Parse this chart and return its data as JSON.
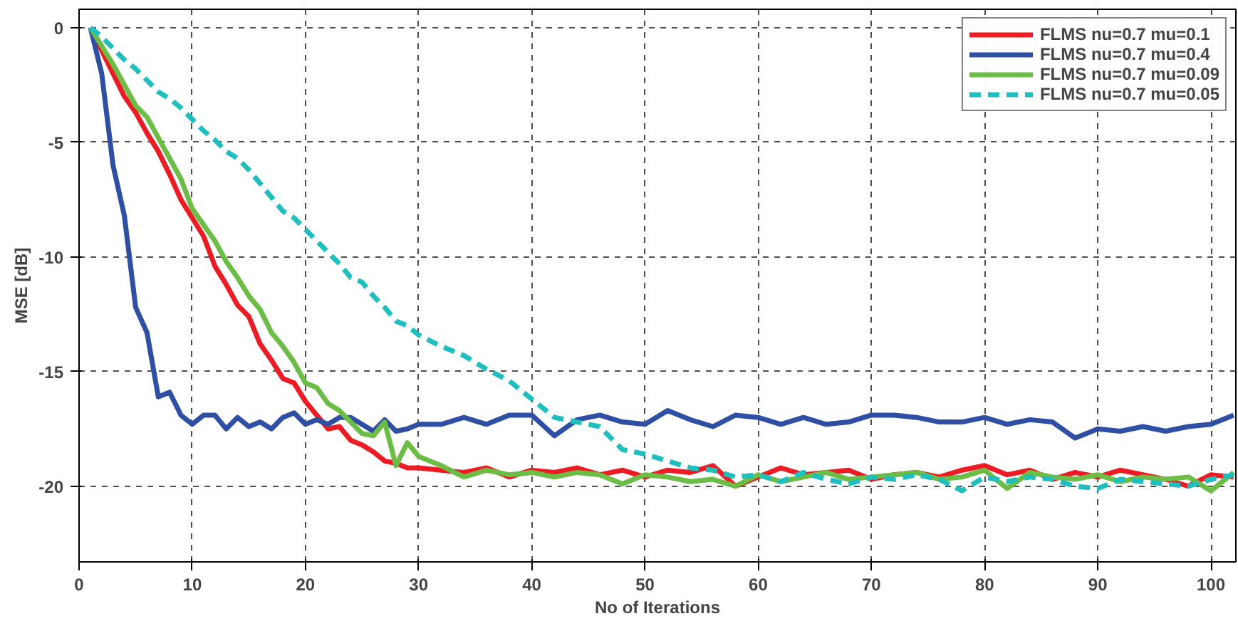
{
  "chart_data": {
    "type": "line",
    "xlabel": "No of Iterations",
    "ylabel": "MSE [dB]",
    "x": [
      1,
      2,
      3,
      4,
      5,
      6,
      7,
      8,
      9,
      10,
      11,
      12,
      13,
      14,
      15,
      16,
      17,
      18,
      19,
      20,
      21,
      22,
      23,
      24,
      25,
      26,
      27,
      28,
      29,
      30,
      32,
      34,
      36,
      38,
      40,
      42,
      44,
      46,
      48,
      50,
      52,
      54,
      56,
      58,
      60,
      62,
      64,
      66,
      68,
      70,
      72,
      74,
      76,
      78,
      80,
      82,
      84,
      86,
      88,
      90,
      92,
      94,
      96,
      98,
      100,
      102
    ],
    "series": [
      {
        "name": "FLMS nu=0.7 mu=0.1",
        "color": "#ed1c24",
        "line_style": "solid",
        "values": [
          0,
          -1,
          -2,
          -3,
          -3.7,
          -4.6,
          -5.4,
          -6.4,
          -7.5,
          -8.3,
          -9.1,
          -10.4,
          -11.2,
          -12.1,
          -12.6,
          -13.8,
          -14.5,
          -15.3,
          -15.5,
          -16.3,
          -16.9,
          -17.5,
          -17.4,
          -18.0,
          -18.2,
          -18.5,
          -18.9,
          -19.0,
          -19.2,
          -19.2,
          -19.3,
          -19.4,
          -19.2,
          -19.6,
          -19.3,
          -19.4,
          -19.2,
          -19.5,
          -19.3,
          -19.6,
          -19.3,
          -19.4,
          -19.1,
          -20.0,
          -19.6,
          -19.2,
          -19.5,
          -19.4,
          -19.3,
          -19.7,
          -19.5,
          -19.4,
          -19.6,
          -19.3,
          -19.1,
          -19.5,
          -19.3,
          -19.7,
          -19.4,
          -19.6,
          -19.3,
          -19.5,
          -19.7,
          -20.0,
          -19.5,
          -19.6
        ]
      },
      {
        "name": "FLMS nu=0.7 mu=0.4",
        "color": "#2e4fa3",
        "line_style": "solid",
        "values": [
          0,
          -2,
          -6,
          -8.2,
          -12.2,
          -13.3,
          -16.1,
          -15.9,
          -16.9,
          -17.3,
          -16.9,
          -16.9,
          -17.5,
          -17.0,
          -17.4,
          -17.2,
          -17.5,
          -17.0,
          -16.8,
          -17.3,
          -17.1,
          -17.3,
          -17.0,
          -17.0,
          -17.3,
          -17.6,
          -17.1,
          -17.6,
          -17.5,
          -17.3,
          -17.3,
          -17.0,
          -17.3,
          -16.9,
          -16.9,
          -17.8,
          -17.1,
          -16.9,
          -17.2,
          -17.3,
          -16.7,
          -17.1,
          -17.4,
          -16.9,
          -17.0,
          -17.3,
          -17.0,
          -17.3,
          -17.2,
          -16.9,
          -16.9,
          -17.0,
          -17.2,
          -17.2,
          -17.0,
          -17.3,
          -17.1,
          -17.2,
          -17.9,
          -17.5,
          -17.6,
          -17.4,
          -17.6,
          -17.4,
          -17.3,
          -16.9
        ]
      },
      {
        "name": "FLMS nu=0.7 mu=0.09",
        "color": "#6cbd45",
        "line_style": "solid",
        "values": [
          0,
          -0.8,
          -1.6,
          -2.5,
          -3.4,
          -3.9,
          -4.8,
          -5.7,
          -6.6,
          -7.9,
          -8.6,
          -9.3,
          -10.2,
          -10.9,
          -11.7,
          -12.3,
          -13.3,
          -13.9,
          -14.6,
          -15.5,
          -15.7,
          -16.4,
          -16.7,
          -17.2,
          -17.7,
          -17.8,
          -17.2,
          -19.1,
          -18.1,
          -18.7,
          -19.1,
          -19.6,
          -19.3,
          -19.5,
          -19.4,
          -19.6,
          -19.4,
          -19.5,
          -19.9,
          -19.5,
          -19.6,
          -19.8,
          -19.7,
          -20.0,
          -19.5,
          -19.8,
          -19.6,
          -19.4,
          -19.7,
          -19.6,
          -19.5,
          -19.4,
          -19.7,
          -19.6,
          -19.3,
          -20.1,
          -19.4,
          -19.6,
          -19.7,
          -19.5,
          -19.8,
          -19.6,
          -19.7,
          -19.6,
          -20.2,
          -19.4
        ]
      },
      {
        "name": "FLMS nu=0.7 mu=0.05",
        "color": "#1fbfbf",
        "line_style": "dashed",
        "values": [
          0,
          -0.4,
          -0.9,
          -1.4,
          -1.8,
          -2.3,
          -2.8,
          -3.1,
          -3.5,
          -4.0,
          -4.5,
          -4.9,
          -5.4,
          -5.7,
          -6.2,
          -6.8,
          -7.4,
          -8.0,
          -8.3,
          -8.8,
          -9.3,
          -9.8,
          -10.3,
          -10.9,
          -11.1,
          -11.7,
          -12.2,
          -12.8,
          -13.0,
          -13.4,
          -13.9,
          -14.3,
          -14.9,
          -15.4,
          -16.2,
          -17.0,
          -17.2,
          -17.4,
          -18.4,
          -18.6,
          -18.9,
          -19.2,
          -19.3,
          -19.6,
          -19.5,
          -19.8,
          -19.4,
          -19.7,
          -19.9,
          -19.6,
          -19.7,
          -19.5,
          -19.7,
          -20.2,
          -19.6,
          -19.8,
          -19.6,
          -19.7,
          -20.0,
          -20.1,
          -19.7,
          -19.8,
          -19.9,
          -20.0,
          -19.7,
          -19.5
        ]
      }
    ],
    "xlim": [
      0,
      102.2
    ],
    "ylim": [
      -23.3,
      0.8
    ],
    "xticks": [
      0,
      10,
      20,
      30,
      40,
      50,
      60,
      70,
      80,
      90,
      100
    ],
    "yticks": [
      -20,
      -15,
      -10,
      -5,
      0
    ],
    "grid": true,
    "legend": "top right",
    "marker": "none"
  }
}
